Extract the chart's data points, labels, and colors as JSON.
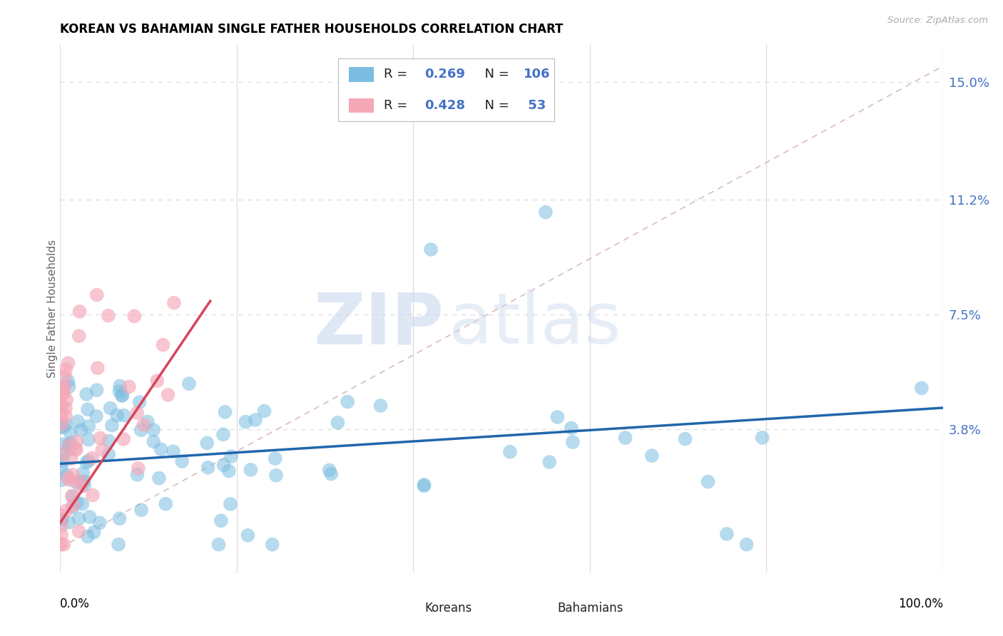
{
  "title": "KOREAN VS BAHAMIAN SINGLE FATHER HOUSEHOLDS CORRELATION CHART",
  "source": "Source: ZipAtlas.com",
  "ylabel": "Single Father Households",
  "ytick_labels": [
    "3.8%",
    "7.5%",
    "11.2%",
    "15.0%"
  ],
  "ytick_values": [
    0.038,
    0.075,
    0.112,
    0.15
  ],
  "xlim": [
    0.0,
    1.0
  ],
  "ylim": [
    -0.008,
    0.162
  ],
  "korean_R": 0.269,
  "korean_N": 106,
  "bahamian_R": 0.428,
  "bahamian_N": 53,
  "korean_color": "#7bbde0",
  "bahamian_color": "#f4a8b8",
  "korean_line_color": "#2166ac",
  "bahamian_line_color": "#d6455a",
  "diagonal_color": "#ddbbbb",
  "watermark_zip": "ZIP",
  "watermark_atlas": "atlas",
  "background_color": "#ffffff",
  "grid_color": "#dddddd",
  "legend_blue": "#4472c4",
  "legend_text_color": "#222222"
}
